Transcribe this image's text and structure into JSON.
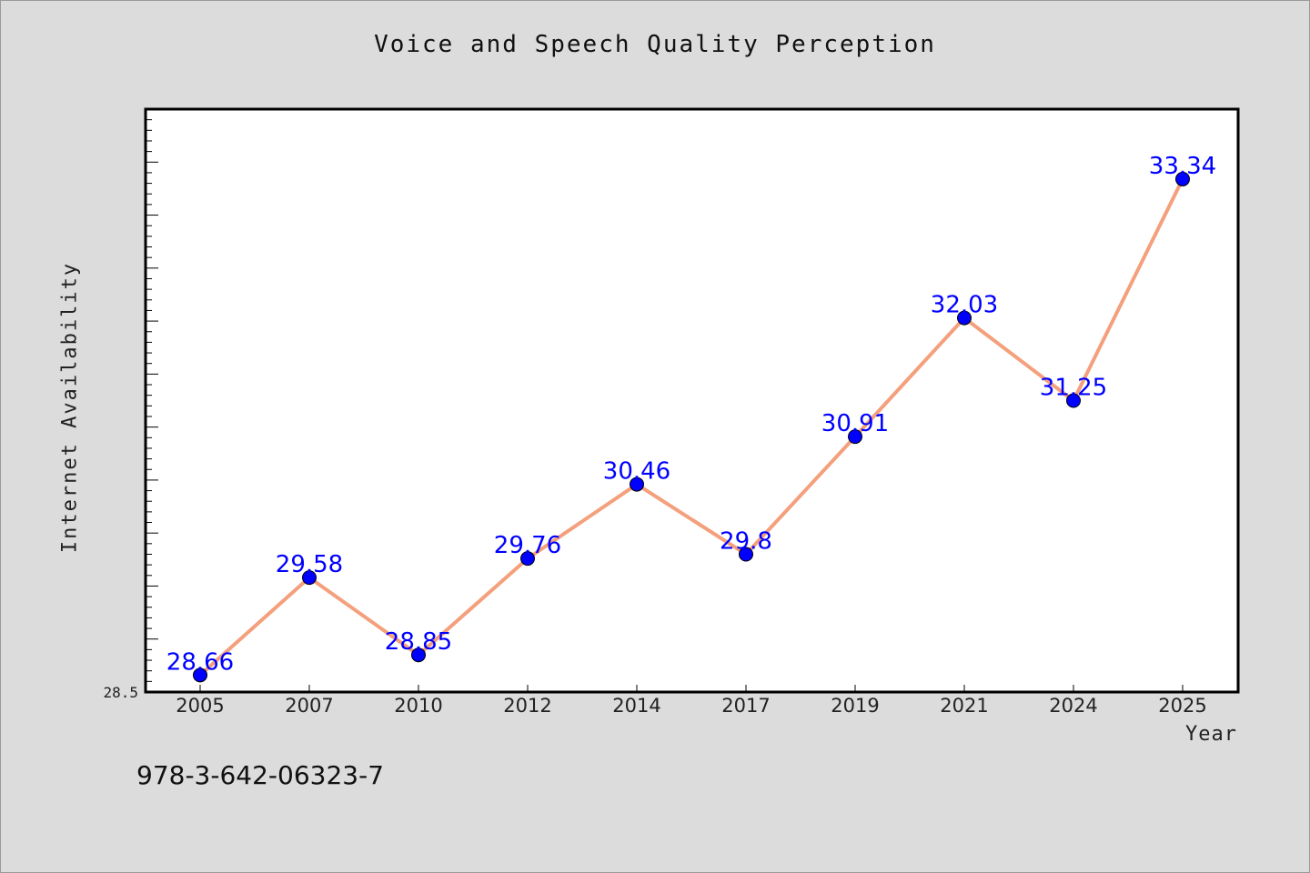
{
  "chart_data": {
    "type": "line",
    "title": "Voice and Speech Quality Perception",
    "xlabel": "Year",
    "ylabel": "Internet Availability",
    "categories": [
      "2005",
      "2007",
      "2010",
      "2012",
      "2014",
      "2017",
      "2019",
      "2021",
      "2024",
      "2025"
    ],
    "series": [
      {
        "values": [
          28.66,
          29.58,
          28.85,
          29.76,
          30.46,
          29.8,
          30.91,
          32.03,
          31.25,
          33.34
        ]
      }
    ],
    "data_labels": [
      "28.66",
      "29.58",
      "28.85",
      "29.76",
      "30.46",
      "29.8",
      "30.91",
      "32.03",
      "31.25",
      "33.34"
    ],
    "ylim": [
      28.5,
      34.0
    ],
    "y_tick_labels": [
      "28.5"
    ],
    "grid": false,
    "colors": {
      "line": "#f4a07c",
      "marker": "#0000ff",
      "label": "#0000ff",
      "background": "#dcdcdc",
      "plot_background": "#ffffff"
    }
  },
  "footer": {
    "isbn": "978-3-642-06323-7"
  }
}
